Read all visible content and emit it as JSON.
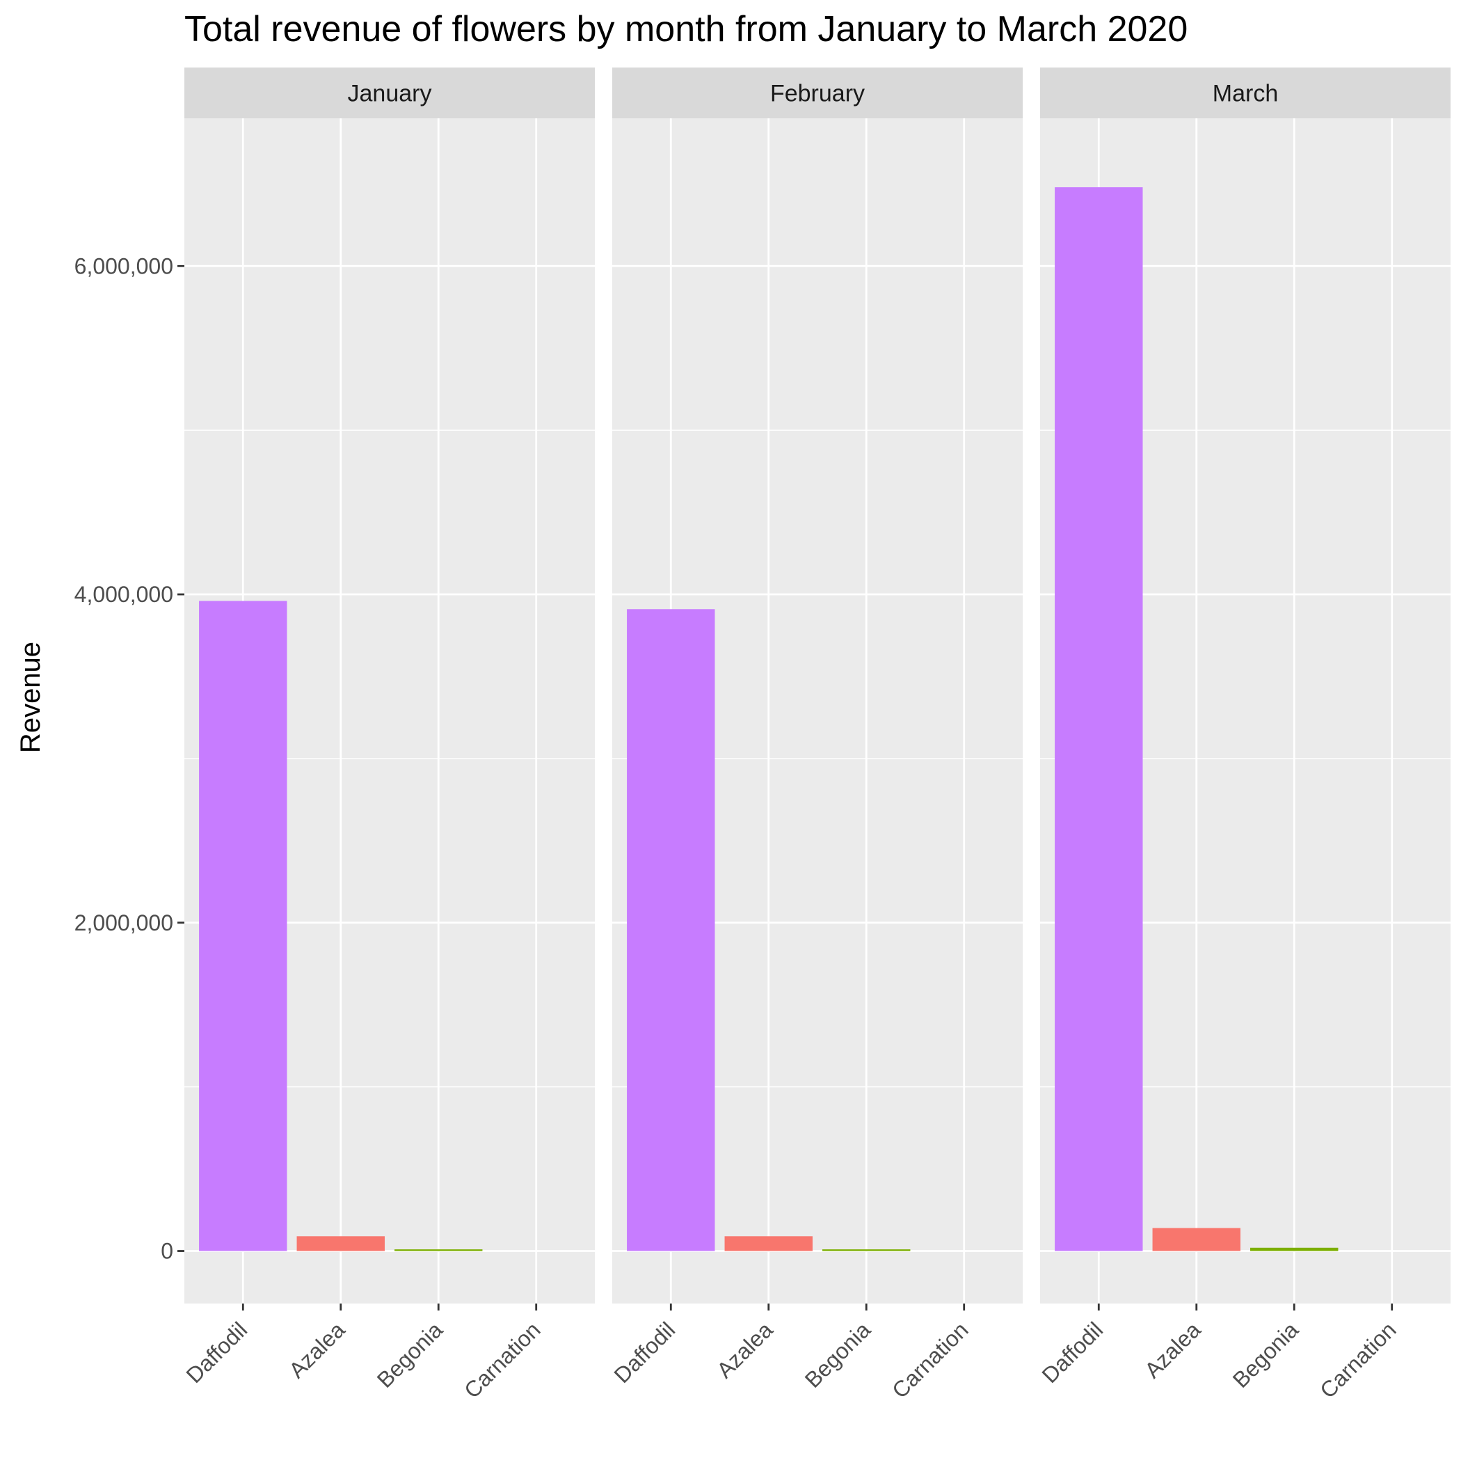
{
  "chart_data": {
    "type": "bar",
    "title": "Total revenue of flowers by month from January to March 2020",
    "xlabel": "",
    "ylabel": "Revenue",
    "ylim": [
      -320000,
      6900000
    ],
    "y_ticks": [
      0,
      2000000,
      4000000,
      6000000
    ],
    "y_tick_labels": [
      "0",
      "2,000,000",
      "4,000,000",
      "6,000,000"
    ],
    "grid": true,
    "legend": "none",
    "categories": [
      "Daffodil",
      "Azalea",
      "Begonia",
      "Carnation"
    ],
    "category_colors": {
      "Daffodil": "#C77CFF",
      "Azalea": "#F8766D",
      "Begonia": "#7CAE00",
      "Carnation": "#00BFC4"
    },
    "facets": [
      {
        "name": "January",
        "values": [
          3960000,
          90000,
          10000,
          0
        ]
      },
      {
        "name": "February",
        "values": [
          3910000,
          90000,
          10000,
          0
        ]
      },
      {
        "name": "March",
        "values": [
          6480000,
          140000,
          20000,
          0
        ]
      }
    ]
  }
}
